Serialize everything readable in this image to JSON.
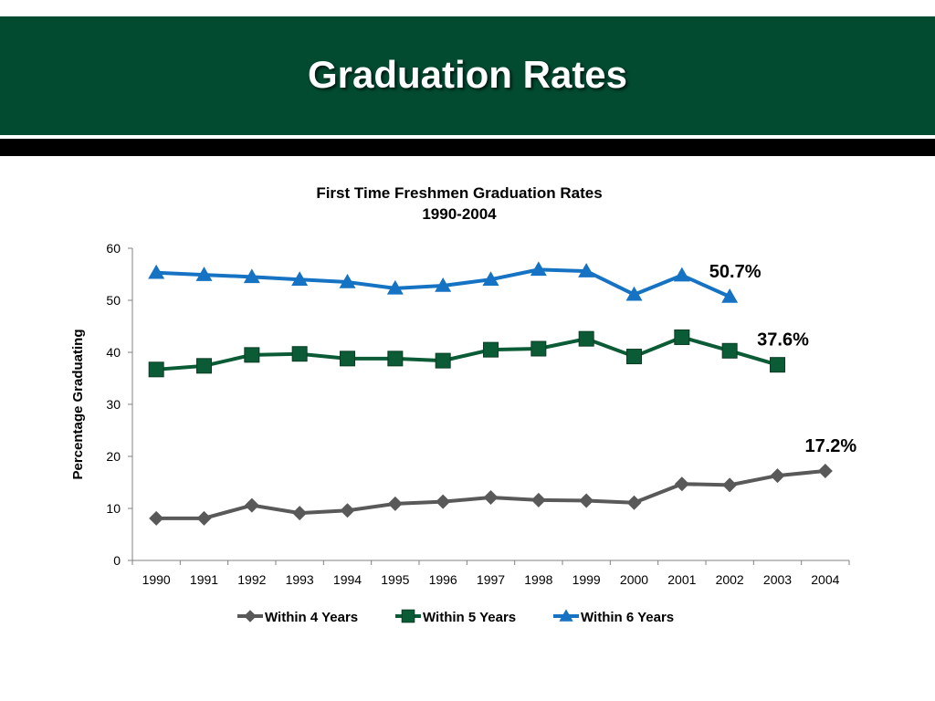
{
  "slide": {
    "title": "Graduation Rates"
  },
  "colors": {
    "header_bg": "#024b30",
    "series_4yr": "#595959",
    "series_5yr": "#0b5b36",
    "series_6yr": "#1673c3"
  },
  "chart_data": {
    "type": "line",
    "title": "First Time Freshmen Graduation Rates",
    "subtitle": "1990-2004",
    "xlabel": "",
    "ylabel": "Percentage Graduating",
    "ylim": [
      0,
      60
    ],
    "yticks": [
      "0",
      "10",
      "20",
      "30",
      "40",
      "50",
      "60"
    ],
    "categories": [
      "1990",
      "1991",
      "1992",
      "1993",
      "1994",
      "1995",
      "1996",
      "1997",
      "1998",
      "1999",
      "2000",
      "2001",
      "2002",
      "2003",
      "2004"
    ],
    "series": [
      {
        "name": "Within 4 Years",
        "marker": "diamond",
        "color": "#595959",
        "values": [
          8.1,
          8.1,
          10.6,
          9.1,
          9.6,
          10.9,
          11.3,
          12.1,
          11.6,
          11.5,
          11.1,
          14.7,
          14.5,
          16.3,
          17.2
        ]
      },
      {
        "name": "Within 5 Years",
        "marker": "square",
        "color": "#0b5b36",
        "values": [
          36.7,
          37.4,
          39.5,
          39.7,
          38.8,
          38.8,
          38.4,
          40.5,
          40.7,
          42.6,
          39.2,
          42.9,
          40.3,
          37.6,
          null
        ]
      },
      {
        "name": "Within 6 Years",
        "marker": "triangle",
        "color": "#1673c3",
        "values": [
          55.3,
          54.9,
          54.5,
          54.0,
          53.5,
          52.3,
          52.8,
          54.0,
          55.9,
          55.6,
          51.1,
          54.8,
          50.7,
          null,
          null
        ]
      }
    ],
    "annotations": [
      {
        "text": "50.7%",
        "series": 2,
        "index": 12
      },
      {
        "text": "37.6%",
        "series": 1,
        "index": 13
      },
      {
        "text": "17.2%",
        "series": 0,
        "index": 14
      }
    ],
    "legend": "bottom",
    "grid": false
  }
}
